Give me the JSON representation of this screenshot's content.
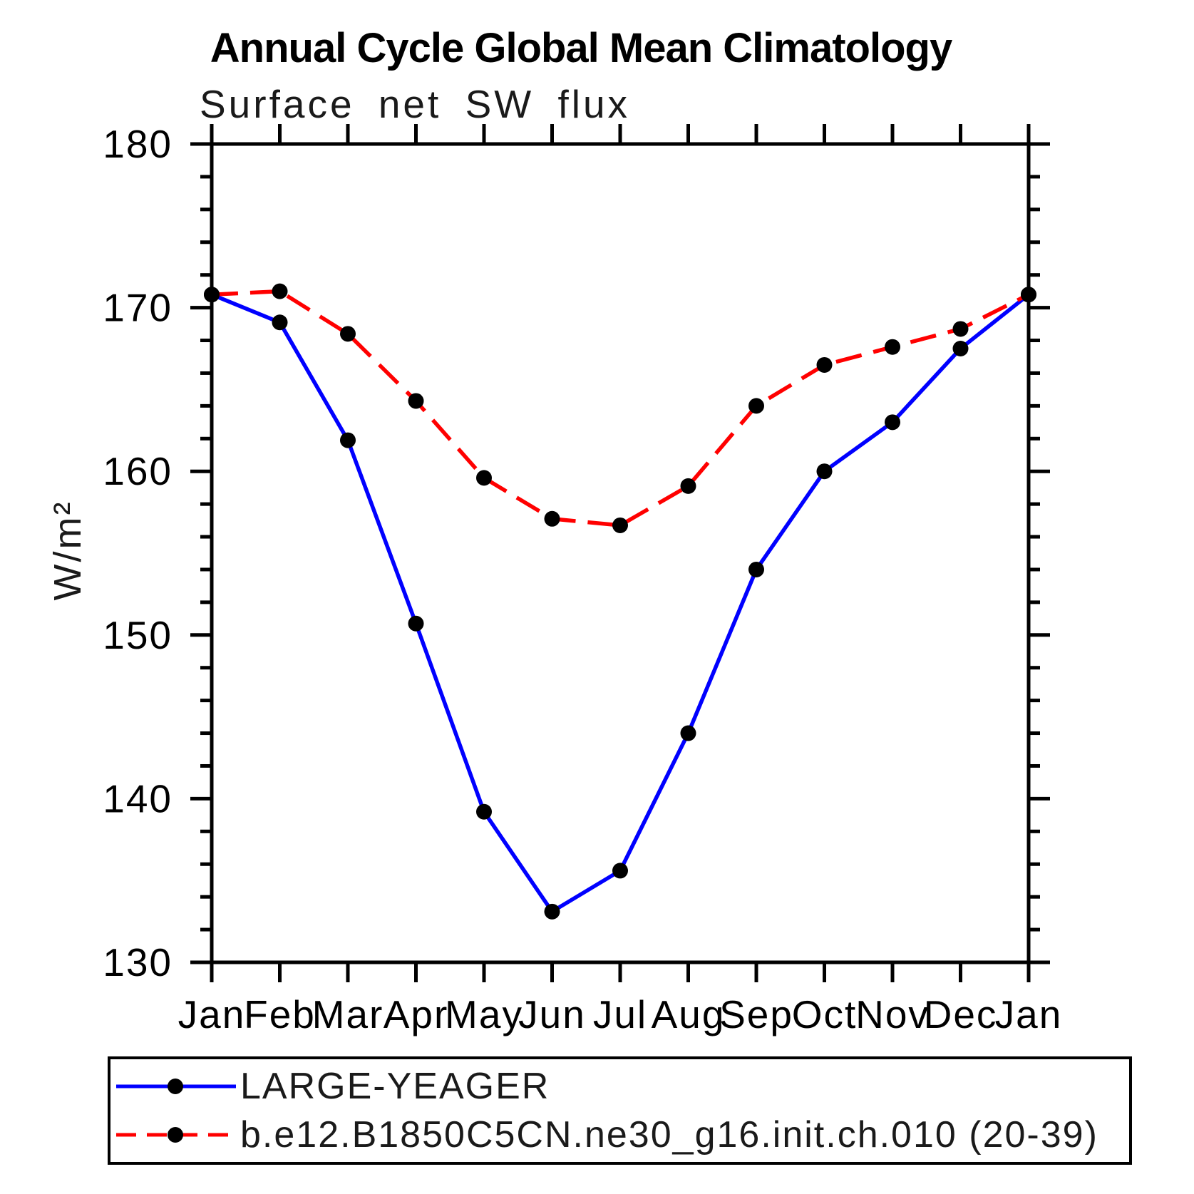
{
  "chart_data": {
    "type": "line",
    "title": "Annual Cycle Global Mean Climatology",
    "subtitle": "Surface net SW flux",
    "ylabel": "W/m²",
    "xlabel": "",
    "x_labels": [
      "Jan",
      "Feb",
      "Mar",
      "Apr",
      "May",
      "Jun",
      "Jul",
      "Aug",
      "Sep",
      "Oct",
      "Nov",
      "Dec",
      "Jan"
    ],
    "ylim": [
      130,
      180
    ],
    "y_major_ticks": [
      130,
      140,
      150,
      160,
      170,
      180
    ],
    "y_minor_step": 2,
    "grid": false,
    "legend_position": "bottom",
    "marker": {
      "shape": "circle",
      "color": "#000000"
    },
    "series": [
      {
        "name": "LARGE-YEAGER",
        "color": "#0000ff",
        "line_style": "solid",
        "values": [
          170.8,
          169.1,
          161.9,
          150.7,
          139.2,
          133.1,
          135.6,
          144.0,
          154.0,
          160.0,
          163.0,
          167.5,
          170.8
        ]
      },
      {
        "name": "b.e12.B1850C5CN.ne30_g16.init.ch.010 (20-39)",
        "color": "#ff0000",
        "line_style": "dashed",
        "values": [
          170.8,
          171.0,
          168.4,
          164.3,
          159.6,
          157.1,
          156.7,
          159.1,
          164.0,
          166.5,
          167.6,
          168.7,
          170.8
        ]
      }
    ]
  }
}
